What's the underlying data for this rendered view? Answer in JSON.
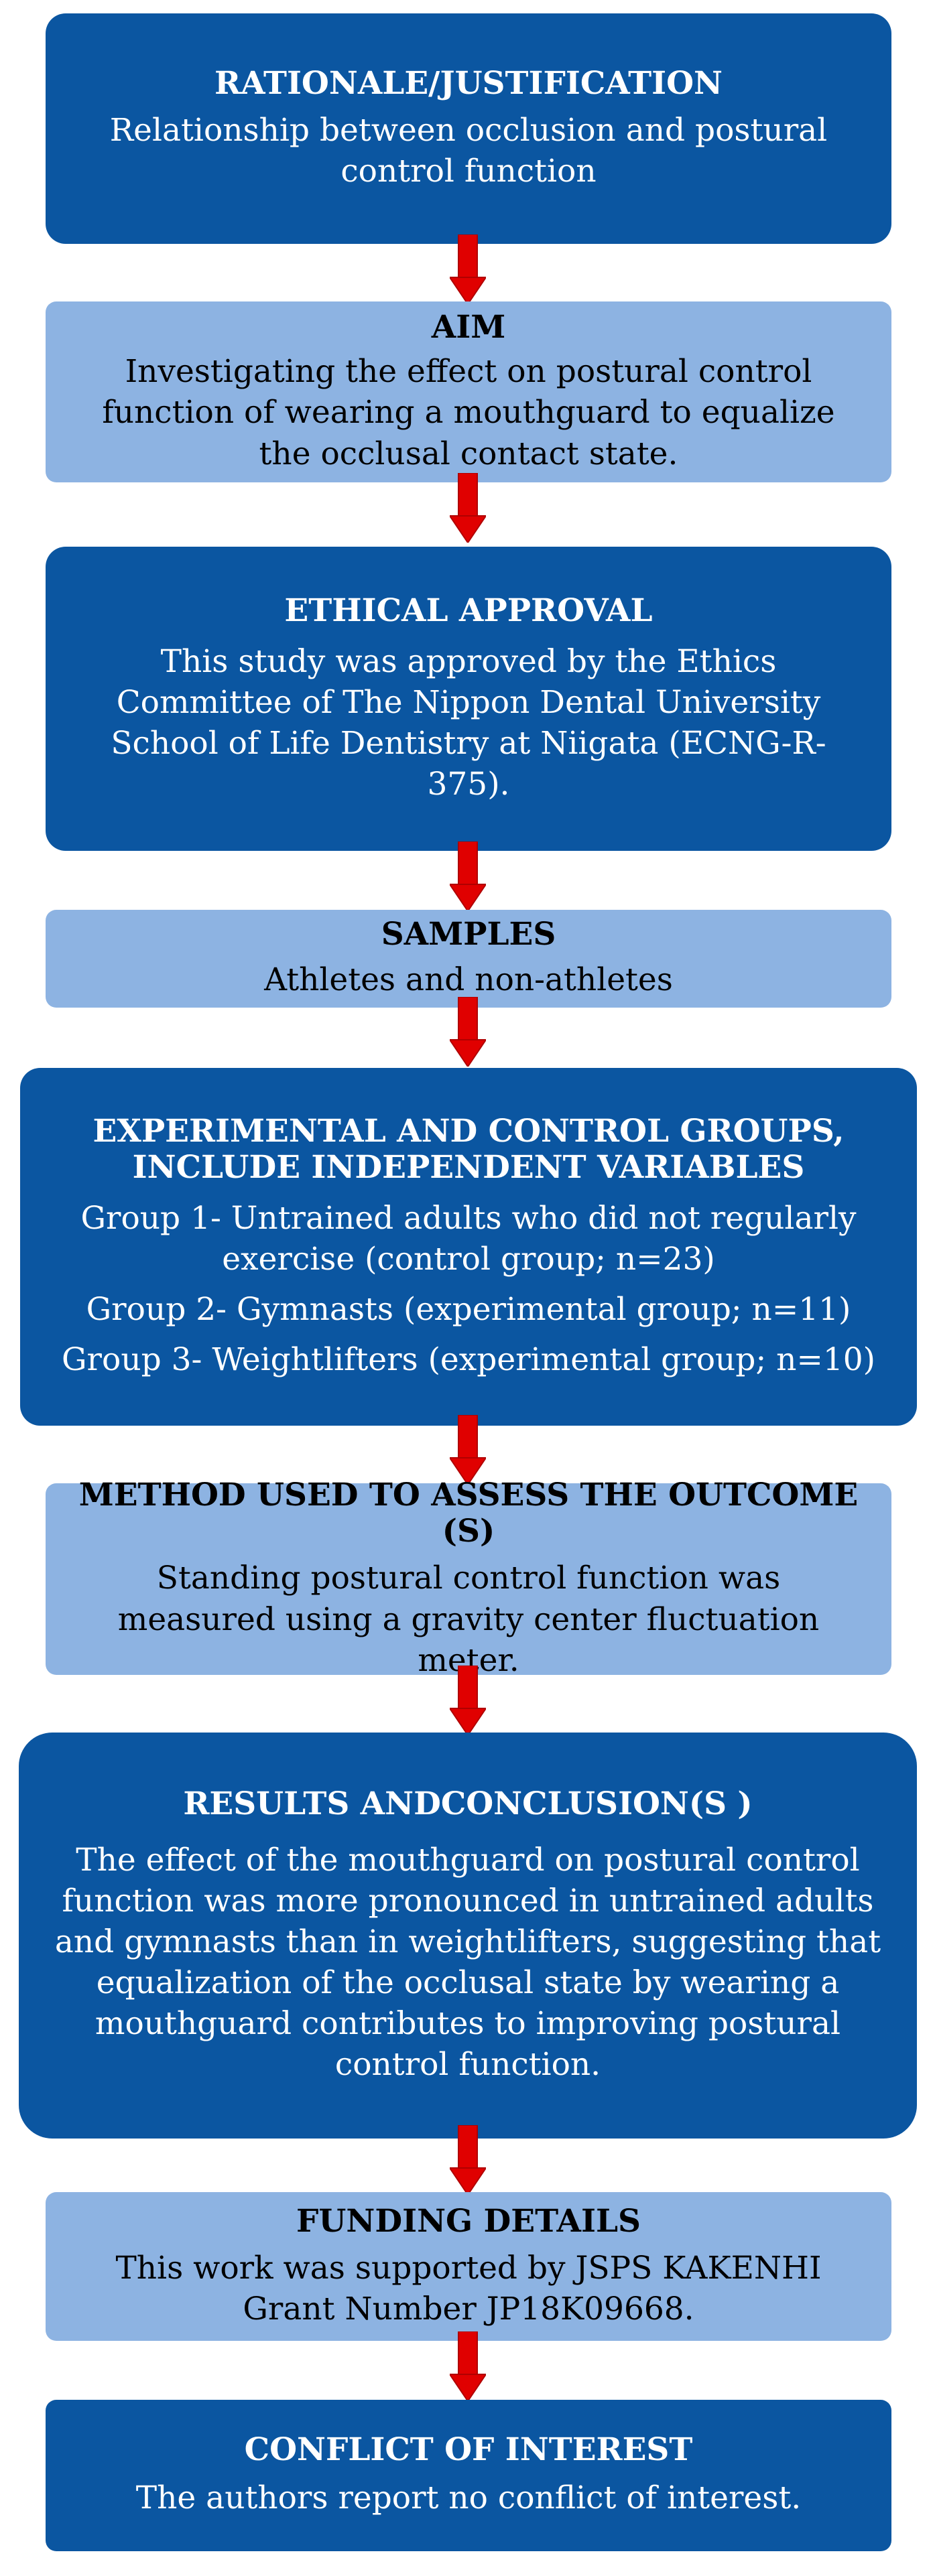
{
  "boxes": [
    {
      "title": "RATIONALE/JUSTIFICATION",
      "lines": [
        "Relationship between occlusion and postural control function"
      ]
    },
    {
      "title": "AIM",
      "lines": [
        "Investigating the effect on postural control function of wearing a mouthguard to equalize the occlusal contact state."
      ]
    },
    {
      "title": "ETHICAL APPROVAL",
      "lines": [
        "This study was approved by the Ethics Committee of The Nippon Dental University School of Life Dentistry at Niigata (ECNG-R-375)."
      ]
    },
    {
      "title": "SAMPLES",
      "lines": [
        "Athletes and non-athletes"
      ]
    },
    {
      "title": "EXPERIMENTAL AND CONTROL GROUPS, INCLUDE INDEPENDENT VARIABLES",
      "lines": [
        "Group 1- Untrained adults who did not regularly exercise (control group; n=23)",
        "Group 2- Gymnasts (experimental group; n=11)",
        "Group 3- Weightlifters (experimental group; n=10)"
      ]
    },
    {
      "title": "METHOD USED TO ASSESS THE OUTCOME (S)",
      "lines": [
        "Standing postural control function was measured using a gravity center fluctuation meter."
      ]
    },
    {
      "title": "RESULTS ANDCONCLUSION(S )",
      "lines": [
        "The effect of the mouthguard on postural control function was more pronounced in untrained adults and gymnasts than in weightlifters, suggesting that equalization of the occlusal state by wearing a mouthguard contributes to improving postural control function."
      ]
    },
    {
      "title": "FUNDING DETAILS",
      "lines": [
        "This work was supported by JSPS KAKENHI Grant Number JP18K09668."
      ]
    },
    {
      "title": "CONFLICT OF INTEREST",
      "lines": [
        "The authors report no conflict of interest."
      ]
    }
  ],
  "colors": {
    "dark_box": "#0b56a1",
    "light_box": "#8db3e2",
    "arrow": "#e00000"
  }
}
